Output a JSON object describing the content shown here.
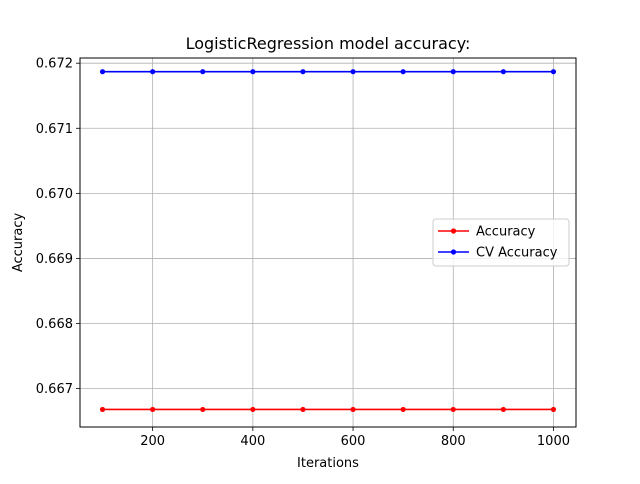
{
  "chart_data": {
    "type": "line",
    "title": "LogisticRegression model accuracy:",
    "xlabel": "Iterations",
    "ylabel": "Accuracy",
    "xlim": [
      55,
      1045
    ],
    "ylim": [
      0.66641,
      0.67208
    ],
    "x_ticks": [
      200,
      400,
      600,
      800,
      1000
    ],
    "x_tick_labels": [
      "200",
      "400",
      "600",
      "800",
      "1000"
    ],
    "y_ticks": [
      0.667,
      0.668,
      0.669,
      0.67,
      0.671,
      0.672
    ],
    "y_tick_labels": [
      "0.667",
      "0.668",
      "0.669",
      "0.670",
      "0.671",
      "0.672"
    ],
    "grid": true,
    "legend_position": "center-right",
    "x": [
      100,
      200,
      300,
      400,
      500,
      600,
      700,
      800,
      900,
      1000
    ],
    "series": [
      {
        "name": "Accuracy",
        "color": "#ff0000",
        "marker": "dot",
        "values": [
          0.66668,
          0.66668,
          0.66668,
          0.66668,
          0.66668,
          0.66668,
          0.66668,
          0.66668,
          0.66668,
          0.66668
        ]
      },
      {
        "name": "CV Accuracy",
        "color": "#0000ff",
        "marker": "dot",
        "values": [
          0.67187,
          0.67187,
          0.67187,
          0.67187,
          0.67187,
          0.67187,
          0.67187,
          0.67187,
          0.67187,
          0.67187
        ]
      }
    ]
  }
}
